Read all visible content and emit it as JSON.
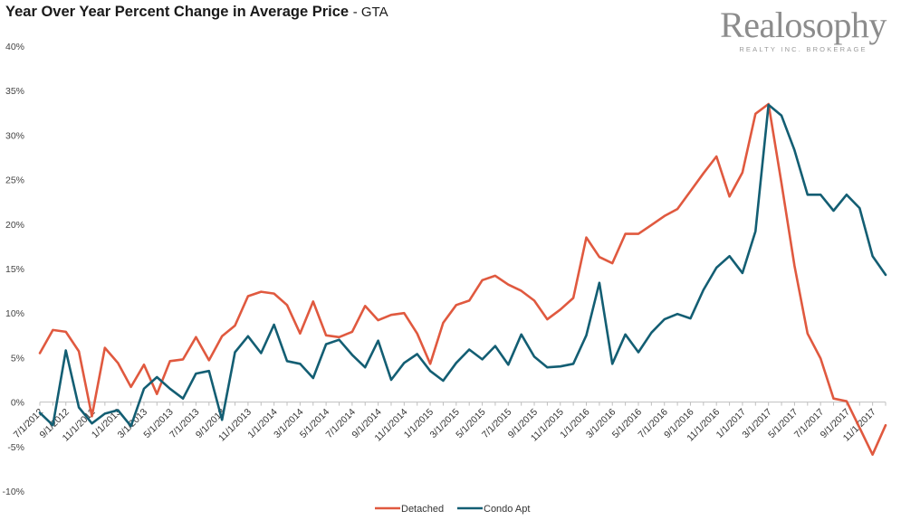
{
  "header": {
    "title": "Year Over Year Percent Change in Average Price",
    "subtitle": "- GTA"
  },
  "logo": {
    "brand": "Realosophy",
    "tagline": "REALTY INC. BROKERAGE"
  },
  "colors": {
    "detached": "#e0593f",
    "condo": "#135e73",
    "axis": "#bfbfbf"
  },
  "chart_data": {
    "type": "line",
    "title": "Year Over Year Percent Change in Average Price - GTA",
    "xlabel": "",
    "ylabel": "",
    "ylim": [
      -10,
      40
    ],
    "yticks": [
      -10,
      -5,
      0,
      5,
      10,
      15,
      20,
      25,
      30,
      35,
      40
    ],
    "ytick_labels": [
      "-10%",
      "-5%",
      "0%",
      "5%",
      "10%",
      "15%",
      "20%",
      "25%",
      "30%",
      "35%",
      "40%"
    ],
    "grid": false,
    "legend_position": "bottom",
    "x_tick_labels": [
      "7/1/2012",
      "9/1/2012",
      "11/1/2012",
      "1/1/2013",
      "3/1/2013",
      "5/1/2013",
      "7/1/2013",
      "9/1/2013",
      "11/1/2013",
      "1/1/2014",
      "3/1/2014",
      "5/1/2014",
      "7/1/2014",
      "9/1/2014",
      "11/1/2014",
      "1/1/2015",
      "3/1/2015",
      "5/1/2015",
      "7/1/2015",
      "9/1/2015",
      "11/1/2015",
      "1/1/2016",
      "3/1/2016",
      "5/1/2016",
      "7/1/2016",
      "9/1/2016",
      "11/1/2016",
      "1/1/2017",
      "3/1/2017",
      "5/1/2017",
      "7/1/2017",
      "9/1/2017",
      "11/1/2017"
    ],
    "x": [
      "7/1/2012",
      "8/1/2012",
      "9/1/2012",
      "10/1/2012",
      "11/1/2012",
      "12/1/2012",
      "1/1/2013",
      "2/1/2013",
      "3/1/2013",
      "4/1/2013",
      "5/1/2013",
      "6/1/2013",
      "7/1/2013",
      "8/1/2013",
      "9/1/2013",
      "10/1/2013",
      "11/1/2013",
      "12/1/2013",
      "1/1/2014",
      "2/1/2014",
      "3/1/2014",
      "4/1/2014",
      "5/1/2014",
      "6/1/2014",
      "7/1/2014",
      "8/1/2014",
      "9/1/2014",
      "10/1/2014",
      "11/1/2014",
      "12/1/2014",
      "1/1/2015",
      "2/1/2015",
      "3/1/2015",
      "4/1/2015",
      "5/1/2015",
      "6/1/2015",
      "7/1/2015",
      "8/1/2015",
      "9/1/2015",
      "10/1/2015",
      "11/1/2015",
      "12/1/2015",
      "1/1/2016",
      "2/1/2016",
      "3/1/2016",
      "4/1/2016",
      "5/1/2016",
      "6/1/2016",
      "7/1/2016",
      "8/1/2016",
      "9/1/2016",
      "10/1/2016",
      "11/1/2016",
      "12/1/2016",
      "1/1/2017",
      "2/1/2017",
      "3/1/2017",
      "4/1/2017",
      "5/1/2017",
      "6/1/2017",
      "7/1/2017",
      "8/1/2017",
      "9/1/2017",
      "10/1/2017",
      "11/1/2017",
      "12/1/2017"
    ],
    "series": [
      {
        "name": "Detached",
        "values": [
          5.5,
          8.1,
          7.9,
          5.7,
          -1.6,
          6.1,
          4.4,
          1.7,
          4.2,
          0.9,
          4.6,
          4.8,
          7.3,
          4.7,
          7.4,
          8.6,
          11.9,
          12.4,
          12.2,
          10.9,
          7.7,
          11.3,
          7.5,
          7.3,
          7.9,
          10.8,
          9.2,
          9.8,
          10.0,
          7.7,
          4.3,
          8.9,
          10.9,
          11.4,
          13.7,
          14.2,
          13.2,
          12.5,
          11.4,
          9.3,
          10.4,
          11.7,
          18.5,
          16.3,
          15.6,
          18.9,
          18.9,
          19.9,
          20.9,
          21.7,
          23.7,
          25.7,
          27.6,
          23.1,
          25.8,
          32.4,
          33.5,
          24.6,
          15.3,
          7.7,
          4.9,
          0.4,
          0.1,
          -2.9,
          -5.9,
          -2.6
        ]
      },
      {
        "name": "Condo Apt",
        "values": [
          -1.2,
          -2.6,
          5.8,
          -0.6,
          -2.4,
          -1.3,
          -0.9,
          -2.7,
          1.5,
          2.8,
          1.5,
          0.4,
          3.2,
          3.5,
          -2.0,
          5.6,
          7.4,
          5.5,
          8.7,
          4.6,
          4.3,
          2.7,
          6.5,
          7.0,
          5.3,
          3.9,
          6.9,
          2.5,
          4.4,
          5.4,
          3.5,
          2.4,
          4.4,
          5.9,
          4.8,
          6.3,
          4.2,
          7.6,
          5.1,
          3.9,
          4.0,
          4.3,
          7.5,
          13.4,
          4.3,
          7.6,
          5.6,
          7.8,
          9.3,
          9.9,
          9.4,
          12.6,
          15.1,
          16.4,
          14.5,
          19.2,
          33.4,
          32.2,
          28.3,
          23.3,
          23.3,
          21.5,
          23.3,
          21.8,
          16.4,
          14.3
        ]
      }
    ]
  }
}
